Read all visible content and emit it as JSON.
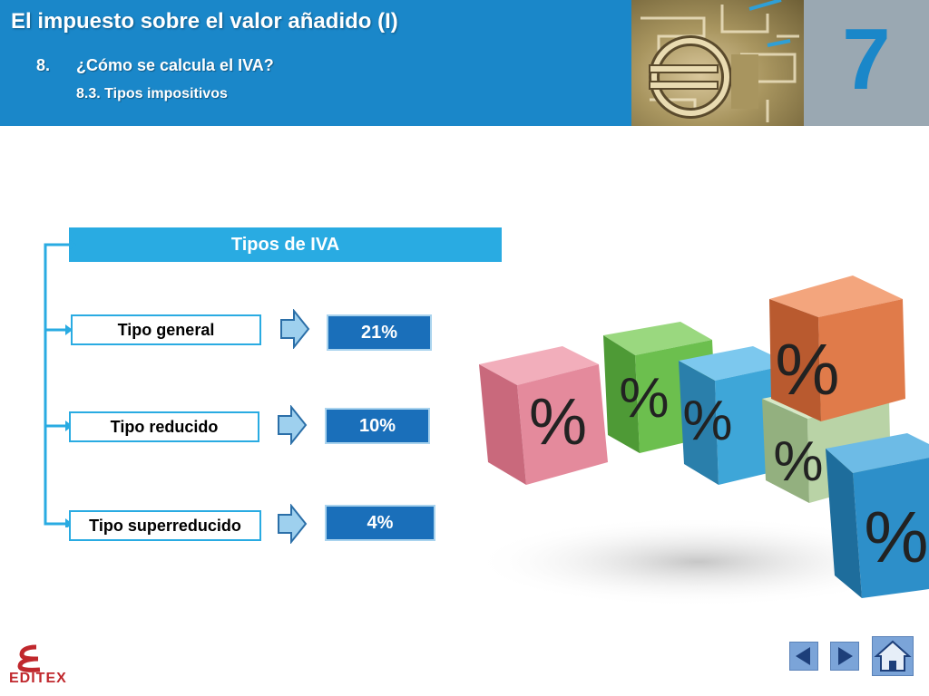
{
  "header": {
    "title": "El impuesto sobre el valor añadido (I)",
    "section_number": "8.",
    "section_title": "¿Cómo se calcula el IVA?",
    "subsection": "8.3. Tipos impositivos",
    "unit_number": "7",
    "photo_icon": "euro-maze-image"
  },
  "diagram": {
    "title": "Tipos de IVA",
    "rows": [
      {
        "label": "Tipo general",
        "rate": "21%"
      },
      {
        "label": "Tipo reducido",
        "rate": "10%"
      },
      {
        "label": "Tipo superreducido",
        "rate": "4%"
      }
    ]
  },
  "illustration": {
    "cube_label": "%",
    "cube_colors": [
      "#e48a9c",
      "#6cbf4e",
      "#3ea6d8",
      "#e07b4a",
      "#b9d3a6",
      "#2d8fc9"
    ]
  },
  "footer": {
    "logo_text": "EDITEX",
    "nav": {
      "prev_icon": "triangle-left-icon",
      "next_icon": "triangle-right-icon",
      "home_icon": "home-icon"
    }
  },
  "colors": {
    "header_blue": "#1a87c9",
    "accent_cyan": "#29abe2",
    "rate_blue": "#1a6fba",
    "unit_gray": "#9aa8b2"
  }
}
